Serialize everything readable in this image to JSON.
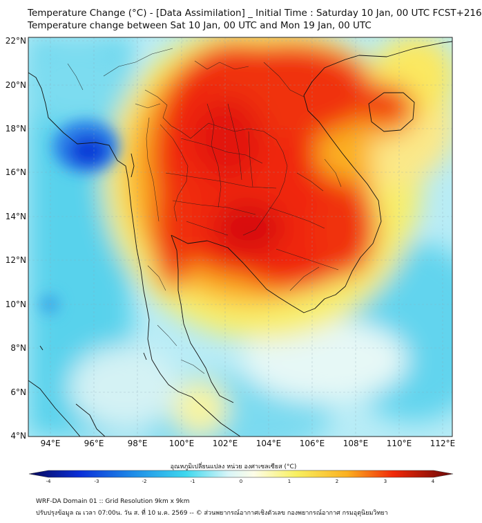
{
  "title_line1": "Temperature Change (°C) - [Data Assimilation] _ Initial Time : Saturday 10 Jan, 00 UTC FCST+216",
  "title_line2": "Temperature change between Sat 10 Jan, 00 UTC and Mon 19 Jan, 00 UTC",
  "lat_labels": [
    "22°N",
    "20°N",
    "18°N",
    "16°N",
    "14°N",
    "12°N",
    "10°N",
    "8°N",
    "6°N",
    "4°N"
  ],
  "lon_labels": [
    "94°E",
    "96°E",
    "98°E",
    "100°E",
    "102°E",
    "104°E",
    "106°E",
    "108°E",
    "110°E",
    "112°E"
  ],
  "colorbar": {
    "title": "อุณหภูมิเปลี่ยนแปลง หน่วย องศาเซลเซียส (°C)",
    "ticks": [
      "-4",
      "-3",
      "-2",
      "-1",
      "0",
      "1",
      "2",
      "3",
      "4"
    ]
  },
  "footer_line1": "WRF-DA Domain 01 :: Grid Resolution 9km x 9km",
  "footer_line2": "ปรับปรุงข้อมูล ณ เวลา 07:00น. วัน ส. ที่ 10 ม.ค. 2569 -- © ส่วนพยากรณ์อากาศเชิงตัวเลข กองพยากรณ์อากาศ กรมอุตุนิยมวิทยา"
}
